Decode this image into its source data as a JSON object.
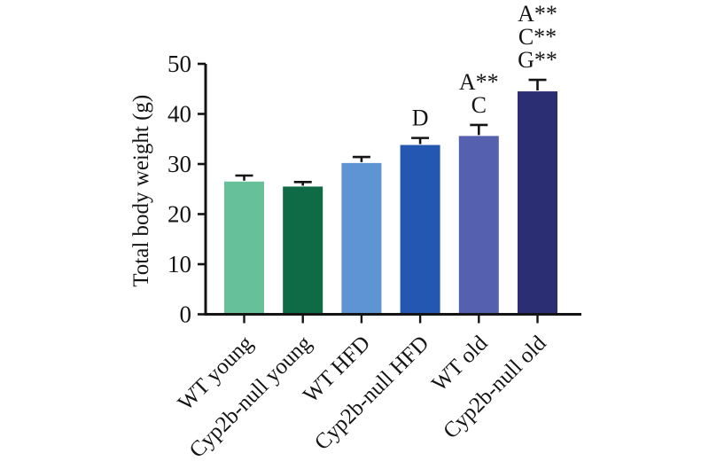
{
  "chart_data": {
    "type": "bar",
    "title": "",
    "xlabel": "",
    "ylabel": "Total body weight (g)",
    "categories": [
      "WT young",
      "Cyp2b-null young",
      "WT HFD",
      "Cyp2b-null HFD",
      "WT old",
      "Cyp2b-null old"
    ],
    "values": [
      26.5,
      25.5,
      30.2,
      33.8,
      35.6,
      44.5
    ],
    "errors_upper": [
      1.2,
      0.9,
      1.2,
      1.4,
      2.2,
      2.3
    ],
    "bar_colors": [
      "#66c19b",
      "#0f6b46",
      "#5e94d2",
      "#2457b1",
      "#5560ae",
      "#2b2e72"
    ],
    "significance_annotations": [
      [],
      [],
      [],
      [
        "D"
      ],
      [
        "A**",
        "C"
      ],
      [
        "A**",
        "C**",
        "G**"
      ]
    ],
    "ylim": [
      0,
      50
    ],
    "yticks": [
      0,
      10,
      20,
      30,
      40,
      50
    ],
    "grid": "off",
    "legend": "none",
    "error_bars": "upper-only"
  },
  "colors": {
    "axis": "#141414",
    "text": "#141414",
    "background": "#ffffff"
  }
}
